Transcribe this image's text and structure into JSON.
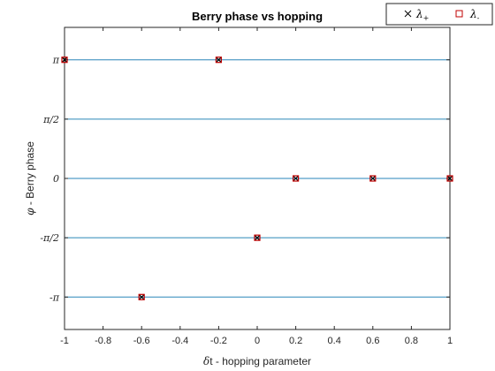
{
  "chart_data": {
    "type": "scatter",
    "title": "Berry phase vs hopping",
    "xlabel_symbol": "δ",
    "xlabel_text": "t - hopping parameter",
    "ylabel_symbol": "φ",
    "ylabel_text": " - Berry phase",
    "xlim": [
      -1,
      1
    ],
    "ylim": [
      -4.0,
      4.0
    ],
    "xticks": [
      -1,
      -0.8,
      -0.6,
      -0.4,
      -0.2,
      0,
      0.2,
      0.4,
      0.6,
      0.8,
      1
    ],
    "xtick_labels": [
      "-1",
      "-0.8",
      "-0.6",
      "-0.4",
      "-0.2",
      "0",
      "0.2",
      "0.4",
      "0.6",
      "0.8",
      "1"
    ],
    "yticks": [
      -3.14159,
      -1.5708,
      0,
      1.5708,
      3.14159
    ],
    "ytick_labels": [
      "-π",
      "-π/2",
      "0",
      "π/2",
      "π"
    ],
    "grid": "horizontal",
    "legend_position": "top-right",
    "series": [
      {
        "name": "λ+",
        "label_main": "λ",
        "label_sub": "+",
        "marker": "x",
        "color": "#000000",
        "x": [
          -1,
          -0.6,
          -0.2,
          0,
          0.2,
          0.6,
          1
        ],
        "y": [
          3.14159,
          -3.14159,
          3.14159,
          -1.5708,
          0,
          0,
          0
        ]
      },
      {
        "name": "λ-",
        "label_main": "λ",
        "label_sub": "-",
        "marker": "square",
        "color": "#c00000",
        "x": [
          -1,
          -0.6,
          -0.2,
          0,
          0.2,
          0.6,
          1
        ],
        "y": [
          3.14159,
          -3.14159,
          3.14159,
          -1.5708,
          0,
          0,
          0
        ]
      }
    ],
    "colors": {
      "grid": "#2a86b8",
      "axis": "#262626"
    }
  }
}
